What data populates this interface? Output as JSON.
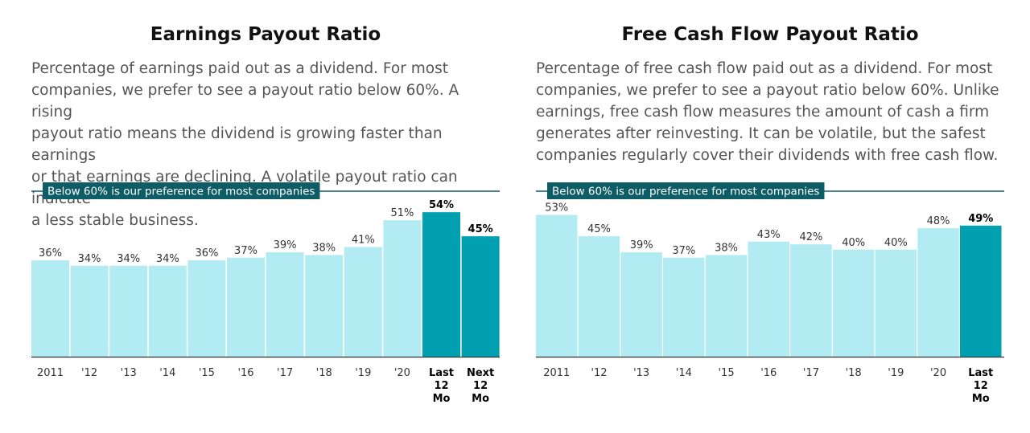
{
  "colors": {
    "bar_light": "#b2ebf2",
    "bar_dark": "#00a0b0",
    "ref_line": "#0f5a62",
    "ref_label_bg": "#0e5d66"
  },
  "chart_data": [
    {
      "type": "bar",
      "title": "Earnings Payout Ratio",
      "description": "Percentage of earnings paid out as a dividend. For most\ncompanies, we prefer to see a payout ratio below 60%. A rising\npayout ratio means the dividend is growing faster than earnings\nor that earnings are declining. A volatile payout ratio can indicate\na less stable business.",
      "reference": {
        "value": 60,
        "label": "Below 60% is our preference for most companies"
      },
      "ylim": [
        0,
        60
      ],
      "categories": [
        "2011",
        "'12",
        "'13",
        "'14",
        "'15",
        "'16",
        "'17",
        "'18",
        "'19",
        "'20",
        "Last\n12\nMo",
        "Next\n12\nMo"
      ],
      "values": [
        36,
        34,
        34,
        34,
        36,
        37,
        39,
        38,
        41,
        51,
        54,
        45
      ],
      "value_labels": [
        "36%",
        "34%",
        "34%",
        "34%",
        "36%",
        "37%",
        "39%",
        "38%",
        "41%",
        "51%",
        "54%",
        "45%"
      ],
      "highlighted": [
        false,
        false,
        false,
        false,
        false,
        false,
        false,
        false,
        false,
        false,
        true,
        true
      ]
    },
    {
      "type": "bar",
      "title": "Free Cash Flow Payout Ratio",
      "description": "Percentage of free cash flow paid out as a dividend. For most\ncompanies, we prefer to see a payout ratio below 60%. Unlike\nearnings, free cash flow measures the amount of cash a firm\ngenerates after reinvesting. It can be volatile, but the safest\ncompanies regularly cover their dividends with free cash flow.",
      "reference": {
        "value": 60,
        "label": "Below 60% is our preference for most companies"
      },
      "ylim": [
        0,
        60
      ],
      "categories": [
        "2011",
        "'12",
        "'13",
        "'14",
        "'15",
        "'16",
        "'17",
        "'18",
        "'19",
        "'20",
        "Last\n12\nMo"
      ],
      "values": [
        53,
        45,
        39,
        37,
        38,
        43,
        42,
        40,
        40,
        48,
        49
      ],
      "value_labels": [
        "53%",
        "45%",
        "39%",
        "37%",
        "38%",
        "43%",
        "42%",
        "40%",
        "40%",
        "48%",
        "49%"
      ],
      "highlighted": [
        false,
        false,
        false,
        false,
        false,
        false,
        false,
        false,
        false,
        false,
        true
      ]
    }
  ]
}
